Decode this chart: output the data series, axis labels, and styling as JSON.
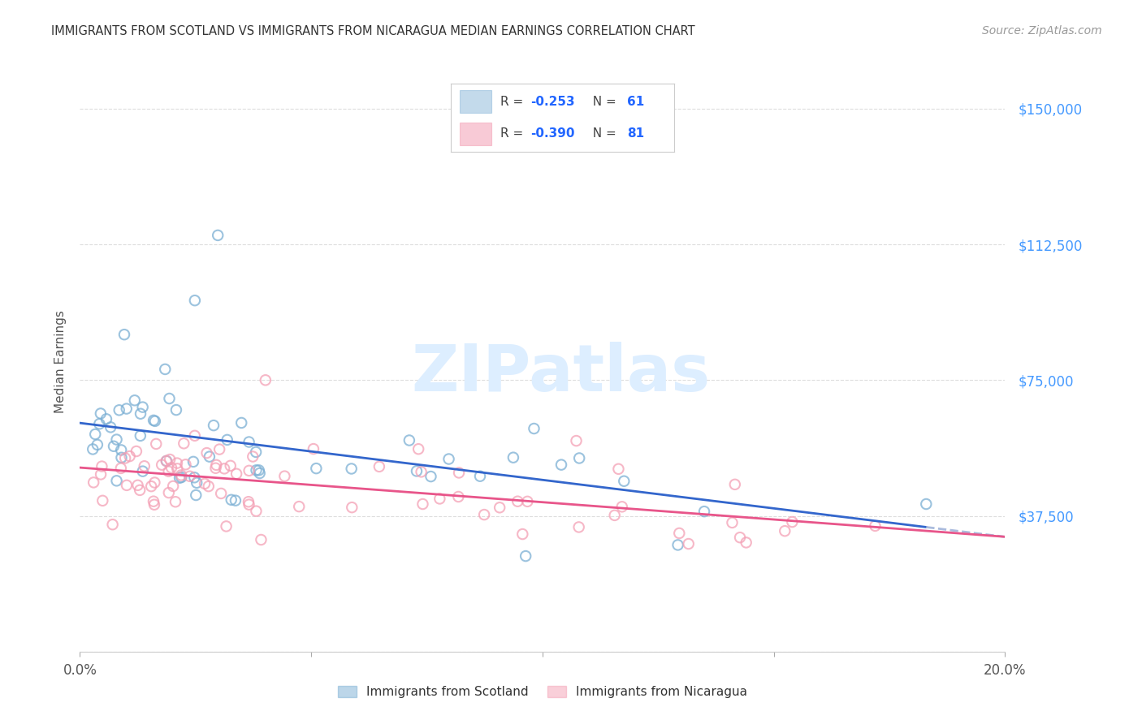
{
  "title": "IMMIGRANTS FROM SCOTLAND VS IMMIGRANTS FROM NICARAGUA MEDIAN EARNINGS CORRELATION CHART",
  "source": "Source: ZipAtlas.com",
  "ylabel": "Median Earnings",
  "scotland_color": "#7bafd4",
  "nicaragua_color": "#f4a0b5",
  "scotland_line_color": "#3366cc",
  "nicaragua_line_color": "#e8558a",
  "scotland_dash_color": "#aabbdd",
  "scotland_R": -0.253,
  "scotland_N": 61,
  "nicaragua_R": -0.39,
  "nicaragua_N": 81,
  "watermark_text": "ZIPatlas",
  "background_color": "#ffffff",
  "grid_color": "#dddddd",
  "ytick_color": "#4499ff",
  "title_color": "#333333",
  "source_color": "#999999",
  "xlim": [
    0.0,
    0.2
  ],
  "ylim": [
    0,
    160000
  ],
  "yticks": [
    0,
    37500,
    75000,
    112500,
    150000
  ],
  "ytick_labels": [
    "",
    "$37,500",
    "$75,000",
    "$112,500",
    "$150,000"
  ],
  "xtick_vals": [
    0.0,
    0.05,
    0.1,
    0.15,
    0.2
  ],
  "xtick_labels_show": [
    "0.0%",
    "",
    "",
    "",
    "20.0%"
  ],
  "legend_R1": "R = -0.253",
  "legend_N1": "N = 61",
  "legend_R2": "R = -0.390",
  "legend_N2": "N = 81",
  "bottom_label1": "Immigrants from Scotland",
  "bottom_label2": "Immigrants from Nicaragua"
}
